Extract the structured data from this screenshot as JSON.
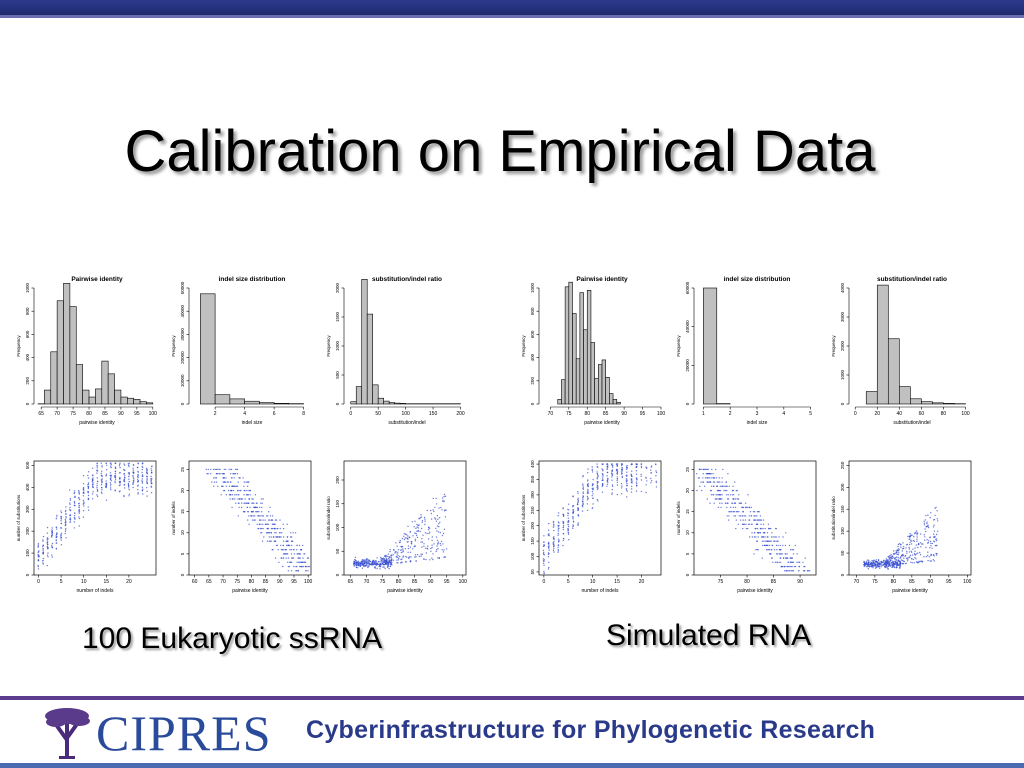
{
  "slide": {
    "title": "Calibration on Empirical Data",
    "caption_left": "100 Eukaryotic ssRNA",
    "caption_right": "Simulated RNA",
    "footer_logo_text": "CIPRES",
    "footer_tagline": "Cyberinfrastructure for Phylogenetic Research",
    "colors": {
      "header_bar": "#2b3a8c",
      "footer_line": "#5b3c8f",
      "logo_blue": "#2a4a9a",
      "bar_fill": "#c0c0c0",
      "point_blue": "#3a4fd0"
    }
  },
  "chart_data": [
    {
      "id": "emp-hist-identity",
      "type": "bar",
      "title": "Pairwise identity",
      "xlabel": "pairwise identity",
      "ylabel": "Frequency",
      "xlim": [
        64,
        101
      ],
      "ylim": [
        0,
        1000
      ],
      "xticks": [
        65,
        70,
        75,
        80,
        85,
        90,
        95,
        100
      ],
      "yticks": [
        0,
        200,
        400,
        600,
        800,
        1000
      ],
      "bins": [
        [
          64,
          66,
          2
        ],
        [
          66,
          68,
          120
        ],
        [
          68,
          70,
          450
        ],
        [
          70,
          72,
          890
        ],
        [
          72,
          74,
          1040
        ],
        [
          74,
          76,
          840
        ],
        [
          76,
          78,
          340
        ],
        [
          78,
          80,
          120
        ],
        [
          80,
          82,
          60
        ],
        [
          82,
          84,
          130
        ],
        [
          84,
          86,
          370
        ],
        [
          86,
          88,
          260
        ],
        [
          88,
          90,
          120
        ],
        [
          90,
          92,
          60
        ],
        [
          92,
          94,
          50
        ],
        [
          94,
          96,
          40
        ],
        [
          96,
          98,
          20
        ],
        [
          98,
          100,
          10
        ]
      ]
    },
    {
      "id": "emp-hist-indelsize",
      "type": "bar",
      "title": "indel size distribution",
      "xlabel": "indel size",
      "ylabel": "Frequency",
      "xlim": [
        0.5,
        8.5
      ],
      "ylim": [
        0,
        50000
      ],
      "xticks": [
        2,
        4,
        6,
        8
      ],
      "yticks": [
        0,
        10000,
        20000,
        30000,
        40000,
        50000
      ],
      "bins": [
        [
          1,
          2,
          47500
        ],
        [
          2,
          3,
          4000
        ],
        [
          3,
          4,
          2200
        ],
        [
          4,
          5,
          1200
        ],
        [
          5,
          6,
          600
        ],
        [
          6,
          7,
          300
        ],
        [
          7,
          8,
          150
        ]
      ]
    },
    {
      "id": "emp-hist-ratio",
      "type": "bar",
      "title": "substitution/indel ratio",
      "xlabel": "substitution/indel",
      "ylabel": "Frequency",
      "xlim": [
        -5,
        210
      ],
      "ylim": [
        0,
        2000
      ],
      "xticks": [
        0,
        50,
        100,
        150,
        200
      ],
      "yticks": [
        0,
        500,
        1000,
        1500,
        2000
      ],
      "bins": [
        [
          0,
          10,
          40
        ],
        [
          10,
          20,
          300
        ],
        [
          20,
          30,
          2150
        ],
        [
          30,
          40,
          1550
        ],
        [
          40,
          50,
          330
        ],
        [
          50,
          60,
          100
        ],
        [
          60,
          70,
          50
        ],
        [
          70,
          80,
          25
        ],
        [
          80,
          90,
          15
        ],
        [
          90,
          100,
          10
        ],
        [
          100,
          200,
          5
        ]
      ]
    },
    {
      "id": "sim-hist-identity",
      "type": "bar",
      "title": "Pairwise identity",
      "xlabel": "pairwise identity",
      "ylabel": "Frequency",
      "xlim": [
        68,
        100
      ],
      "ylim": [
        0,
        1000
      ],
      "xticks": [
        70,
        75,
        80,
        85,
        90,
        95,
        100
      ],
      "yticks": [
        0,
        200,
        400,
        600,
        800,
        1000
      ],
      "bins": [
        [
          72,
          73,
          40
        ],
        [
          73,
          74,
          210
        ],
        [
          74,
          75,
          1010
        ],
        [
          75,
          76,
          1050
        ],
        [
          76,
          77,
          780
        ],
        [
          77,
          78,
          390
        ],
        [
          78,
          79,
          960
        ],
        [
          79,
          80,
          640
        ],
        [
          80,
          81,
          980
        ],
        [
          81,
          82,
          530
        ],
        [
          82,
          83,
          220
        ],
        [
          83,
          84,
          340
        ],
        [
          84,
          85,
          380
        ],
        [
          85,
          86,
          230
        ],
        [
          86,
          87,
          90
        ],
        [
          87,
          88,
          40
        ],
        [
          88,
          89,
          15
        ]
      ]
    },
    {
      "id": "sim-hist-indelsize",
      "type": "bar",
      "title": "indel size distribution",
      "xlabel": "indel size",
      "ylabel": "Frequency",
      "xlim": [
        0.8,
        5.2
      ],
      "ylim": [
        0,
        60000
      ],
      "xticks": [
        1,
        2,
        3,
        4,
        5
      ],
      "yticks": [
        0,
        20000,
        40000,
        60000
      ],
      "bins": [
        [
          1,
          1.5,
          60000
        ],
        [
          1.5,
          2,
          200
        ]
      ]
    },
    {
      "id": "sim-hist-ratio",
      "type": "bar",
      "title": "substitution/indel ratio",
      "xlabel": "substitution/indel",
      "ylabel": "Frequency",
      "xlim": [
        -2,
        105
      ],
      "ylim": [
        0,
        4000
      ],
      "xticks": [
        0,
        20,
        40,
        60,
        80,
        100
      ],
      "yticks": [
        0,
        1000,
        2000,
        3000,
        4000
      ],
      "bins": [
        [
          10,
          20,
          430
        ],
        [
          20,
          30,
          4100
        ],
        [
          30,
          40,
          2250
        ],
        [
          40,
          50,
          600
        ],
        [
          50,
          60,
          180
        ],
        [
          60,
          70,
          80
        ],
        [
          70,
          80,
          40
        ],
        [
          80,
          90,
          20
        ],
        [
          90,
          100,
          10
        ]
      ]
    },
    {
      "id": "emp-scatter-subs",
      "type": "scatter",
      "xlabel": "number of indels",
      "ylabel": "number of substitutions",
      "xlim": [
        -1,
        26
      ],
      "ylim": [
        0,
        520
      ],
      "xticks": [
        0,
        5,
        10,
        15,
        20
      ],
      "yticks": [
        0,
        100,
        200,
        300,
        400,
        500
      ],
      "pattern": "columns-rising"
    },
    {
      "id": "emp-scatter-indels",
      "type": "scatter",
      "xlabel": "pairwise identity",
      "ylabel": "number of indels",
      "xlim": [
        58,
        101
      ],
      "ylim": [
        0,
        27
      ],
      "xticks": [
        60,
        65,
        70,
        75,
        80,
        85,
        90,
        95,
        100
      ],
      "yticks": [
        0,
        5,
        10,
        15,
        20,
        25
      ],
      "pattern": "rows-falling"
    },
    {
      "id": "emp-scatter-ratio",
      "type": "scatter",
      "xlabel": "pairwise identity",
      "ylabel": "substitution/indel ratio",
      "xlim": [
        63,
        101
      ],
      "ylim": [
        0,
        240
      ],
      "xticks": [
        65,
        70,
        75,
        80,
        85,
        90,
        95,
        100
      ],
      "yticks": [
        0,
        50,
        100,
        150,
        200
      ],
      "pattern": "fan"
    },
    {
      "id": "sim-scatter-subs",
      "type": "scatter",
      "xlabel": "number of indels",
      "ylabel": "number of substitutions",
      "xlim": [
        -1,
        24
      ],
      "ylim": [
        40,
        410
      ],
      "xticks": [
        0,
        5,
        10,
        15,
        20
      ],
      "yticks": [
        50,
        100,
        150,
        200,
        250,
        300,
        350,
        400
      ],
      "pattern": "columns-rising"
    },
    {
      "id": "sim-scatter-indels",
      "type": "scatter",
      "xlabel": "pairwise identity",
      "ylabel": "number of indels",
      "xlim": [
        70,
        93
      ],
      "ylim": [
        0,
        27
      ],
      "xticks": [
        75,
        80,
        85,
        90
      ],
      "yticks": [
        0,
        5,
        10,
        15,
        20,
        25
      ],
      "pattern": "rows-falling"
    },
    {
      "id": "sim-scatter-ratio",
      "type": "scatter",
      "xlabel": "pairwise identity",
      "ylabel": "substitution/indel ratio",
      "xlim": [
        68,
        101
      ],
      "ylim": [
        0,
        260
      ],
      "xticks": [
        70,
        75,
        80,
        85,
        90,
        95,
        100
      ],
      "yticks": [
        0,
        50,
        100,
        150,
        200,
        250
      ],
      "pattern": "fan"
    }
  ]
}
